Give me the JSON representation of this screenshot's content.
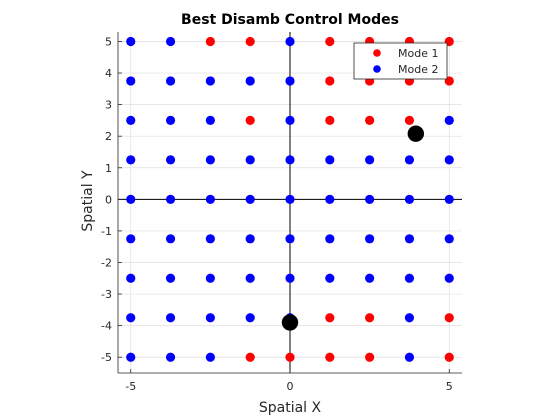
{
  "chart_data": {
    "type": "scatter",
    "title": "Best Disamb Control Modes",
    "xlabel": "Spatial X",
    "ylabel": "Spatial Y",
    "xlim": [
      -5.4,
      5.4
    ],
    "ylim": [
      -5.5,
      5.3
    ],
    "xticks": [
      -5,
      0,
      5
    ],
    "xtick_labels": [
      "-5",
      "0",
      "5"
    ],
    "yticks": [
      -5,
      -4,
      -3,
      -2,
      -1,
      0,
      1,
      2,
      3,
      4,
      5
    ],
    "ytick_labels": [
      "-5",
      "-4",
      "-3",
      "-2",
      "-1",
      "0",
      "1",
      "2",
      "3",
      "4",
      "5"
    ],
    "grid": true,
    "legend_position": "top-right",
    "x_grid_values": [
      -5,
      -3.75,
      -2.5,
      -1.25,
      0,
      1.25,
      2.5,
      3.75,
      5
    ],
    "y_grid_values": [
      5,
      3.75,
      2.5,
      1.25,
      0,
      -1.25,
      -2.5,
      -3.75,
      -5
    ],
    "modes": [
      [
        2,
        2,
        1,
        1,
        2,
        1,
        1,
        1,
        1
      ],
      [
        2,
        2,
        2,
        2,
        2,
        1,
        1,
        1,
        1
      ],
      [
        2,
        2,
        2,
        1,
        2,
        1,
        1,
        1,
        2
      ],
      [
        2,
        2,
        2,
        2,
        2,
        2,
        2,
        2,
        2
      ],
      [
        2,
        2,
        2,
        2,
        2,
        2,
        2,
        2,
        2
      ],
      [
        2,
        2,
        2,
        2,
        2,
        2,
        2,
        2,
        2
      ],
      [
        2,
        2,
        2,
        2,
        2,
        2,
        2,
        2,
        2
      ],
      [
        2,
        2,
        2,
        2,
        2,
        1,
        1,
        2,
        1
      ],
      [
        2,
        2,
        2,
        1,
        1,
        1,
        1,
        2,
        1
      ]
    ],
    "series": [
      {
        "name": "Mode 1",
        "color": "#ff0000"
      },
      {
        "name": "Mode 2",
        "color": "#0000ff"
      }
    ],
    "markers": [
      {
        "x": 3.95,
        "y": 2.08,
        "color": "#000000"
      },
      {
        "x": 0,
        "y": -3.9,
        "color": "#000000"
      }
    ]
  }
}
